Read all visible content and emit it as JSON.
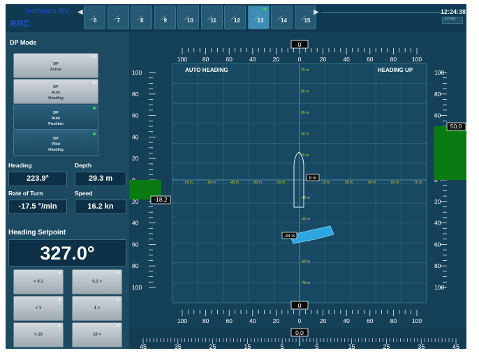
{
  "topbar": {
    "logo_title": "technics BV",
    "logo_mark": "RRC",
    "tabs": [
      {
        "label": "6",
        "selected": false,
        "indicator": false
      },
      {
        "label": "7",
        "selected": false,
        "indicator": false
      },
      {
        "label": "8",
        "selected": false,
        "indicator": false
      },
      {
        "label": "9",
        "selected": false,
        "indicator": false
      },
      {
        "label": "10",
        "selected": false,
        "indicator": false
      },
      {
        "label": "11",
        "selected": false,
        "indicator": false
      },
      {
        "label": "12",
        "selected": false,
        "indicator": false
      },
      {
        "label": "13",
        "selected": true,
        "indicator": true
      },
      {
        "label": "14",
        "selected": false,
        "indicator": false
      },
      {
        "label": "15",
        "selected": false,
        "indicator": false
      }
    ],
    "time": "12:24:38",
    "time_sub": "10 Hz"
  },
  "left": {
    "dp_mode_title": "DP Mode",
    "modes": [
      {
        "lines": [
          "DP",
          "Active"
        ],
        "style": "light",
        "indicator": "white"
      },
      {
        "lines": [
          "DP",
          "Auto",
          "Heading"
        ],
        "style": "light",
        "indicator": "white"
      },
      {
        "lines": [
          "DP",
          "Auto",
          "Position"
        ],
        "style": "dark",
        "indicator": "green"
      },
      {
        "lines": [
          "DP",
          "Pilot",
          "Heading"
        ],
        "style": "dark",
        "indicator": "green"
      }
    ],
    "heading_label": "Heading",
    "heading_value": "223.9°",
    "depth_label": "Depth",
    "depth_value": "29.3 m",
    "rot_label": "Rate of Turn",
    "rot_value": "-17.5 °/min",
    "speed_label": "Speed",
    "speed_value": "16.2 kn",
    "setpoint_title": "Heading Setpoint",
    "setpoint_value": "327.0°",
    "step_buttons": [
      {
        "label": "< 0.1"
      },
      {
        "label": "0.1 >"
      },
      {
        "label": "< 1"
      },
      {
        "label": "1 >"
      },
      {
        "label": "< 10"
      },
      {
        "label": "10 >"
      }
    ]
  },
  "display": {
    "mode_left": "AUTO HEADING",
    "mode_right": "HEADING UP",
    "top_scale_value": "0",
    "bottom_scale_value": "0",
    "bottom_rudder_value": "0,0",
    "left_bar_value": "-18,2",
    "right_bar_value": "50,0",
    "left_bar_level": -18.2,
    "right_bar_level": 50.0,
    "scale_labels": [
      "100",
      "80",
      "60",
      "40",
      "20",
      "0",
      "20",
      "40",
      "60",
      "80",
      "100"
    ],
    "rudder_labels": [
      "45",
      "35",
      "25",
      "15",
      "5",
      "5",
      "15",
      "25",
      "35",
      "45"
    ],
    "vertical_labels": [
      "100",
      "80",
      "60",
      "40",
      "20",
      "0",
      "20",
      "40",
      "60",
      "80",
      "100"
    ],
    "grid_x_labels": [
      "-75 m",
      "-60 m",
      "-45 m",
      "-30 m",
      "-15 m",
      "15 m",
      "30 m",
      "45 m",
      "60 m",
      "75 m"
    ],
    "grid_y_labels": [
      "75 m",
      "60 m",
      "45 m",
      "30 m",
      "15 m",
      "-15 m",
      "-30 m",
      "-45 m",
      "-60 m",
      "-75 m"
    ],
    "own_ship_tag": "8 m",
    "target_tag": "-34 m",
    "colors": {
      "bar_green": "#0a7a12",
      "grid_label": "#d6d21a",
      "target_fill": "#2aa6e0"
    }
  }
}
